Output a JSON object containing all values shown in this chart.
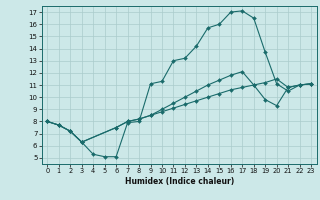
{
  "xlabel": "Humidex (Indice chaleur)",
  "bg_color": "#cce8e8",
  "line_color": "#1a6b6b",
  "grid_color": "#aacccc",
  "xlim": [
    -0.5,
    23.5
  ],
  "ylim": [
    4.5,
    17.5
  ],
  "xticks": [
    0,
    1,
    2,
    3,
    4,
    5,
    6,
    7,
    8,
    9,
    10,
    11,
    12,
    13,
    14,
    15,
    16,
    17,
    18,
    19,
    20,
    21,
    22,
    23
  ],
  "yticks": [
    5,
    6,
    7,
    8,
    9,
    10,
    11,
    12,
    13,
    14,
    15,
    16,
    17
  ],
  "curve1_x": [
    0,
    1,
    2,
    3,
    4,
    5,
    6,
    7,
    8,
    9,
    10,
    11,
    12,
    13,
    14,
    15,
    16,
    17,
    18,
    19,
    20,
    21,
    22,
    23
  ],
  "curve1_y": [
    8.0,
    7.7,
    7.2,
    6.3,
    5.3,
    5.1,
    5.1,
    7.9,
    8.0,
    11.1,
    11.3,
    13.0,
    13.2,
    14.2,
    15.7,
    16.0,
    17.0,
    17.1,
    16.5,
    13.7,
    11.1,
    10.5,
    11.0,
    11.1
  ],
  "curve2_x": [
    0,
    1,
    2,
    3,
    6,
    7,
    8,
    9,
    10,
    11,
    12,
    13,
    14,
    15,
    16,
    17,
    18,
    19,
    20,
    21,
    22,
    23
  ],
  "curve2_y": [
    8.0,
    7.7,
    7.2,
    6.3,
    7.5,
    8.0,
    8.2,
    8.5,
    8.8,
    9.1,
    9.4,
    9.7,
    10.0,
    10.3,
    10.6,
    10.8,
    11.0,
    11.2,
    11.5,
    10.8,
    11.0,
    11.1
  ],
  "curve3_x": [
    0,
    1,
    2,
    3,
    6,
    7,
    8,
    9,
    10,
    11,
    12,
    13,
    14,
    15,
    16,
    17,
    18,
    19,
    20,
    21,
    22,
    23
  ],
  "curve3_y": [
    8.0,
    7.7,
    7.2,
    6.3,
    7.5,
    8.0,
    8.2,
    8.5,
    9.0,
    9.5,
    10.0,
    10.5,
    11.0,
    11.4,
    11.8,
    12.1,
    11.0,
    9.8,
    9.3,
    10.8,
    11.0,
    11.1
  ]
}
